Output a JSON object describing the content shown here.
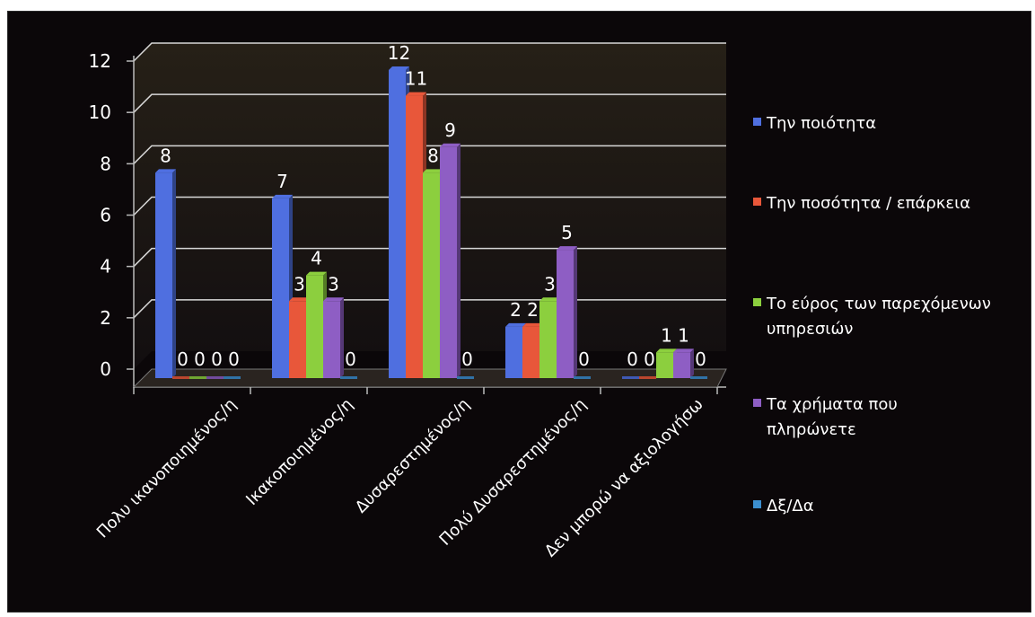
{
  "chart_data": {
    "type": "bar",
    "categories": [
      "Πολυ ικανοποιημένος/η",
      "Ικακοποιημένος/η",
      "Δυσαρεστημένος/η",
      "Πολύ Δυσαρεστημένος/η",
      "Δεν μπορώ να αξιολογήσω"
    ],
    "series": [
      {
        "name": "Την ποιότητα",
        "color": "#4f6fe0",
        "values": [
          8,
          7,
          12,
          2,
          0
        ]
      },
      {
        "name": "Την ποσότητα / επάρκεια",
        "color": "#e8573a",
        "values": [
          0,
          3,
          11,
          2,
          0
        ]
      },
      {
        "name": "Το εύρος των παρεχόμενων υπηρεσιών",
        "color": "#8ccf3e",
        "values": [
          0,
          4,
          8,
          3,
          1
        ]
      },
      {
        "name": "Τα χρήματα που πληρώνετε",
        "color": "#8e5ec4",
        "values": [
          0,
          3,
          9,
          5,
          1
        ]
      },
      {
        "name": "Δξ/Δα",
        "color": "#3c8fcf",
        "values": [
          0,
          0,
          0,
          0,
          0
        ]
      }
    ],
    "yticks": [
      "0",
      "2",
      "4",
      "6",
      "8",
      "10",
      "12"
    ],
    "ylim": [
      0,
      12
    ],
    "grid": true,
    "legend_position": "right",
    "data_labels": [
      [
        "8",
        "0",
        "0",
        "0",
        "0"
      ],
      [
        "7",
        "3",
        "4",
        "3",
        "0"
      ],
      [
        "12",
        "11",
        "8",
        "9",
        "0"
      ],
      [
        "2",
        "2",
        "3",
        "5",
        "0"
      ],
      [
        "0",
        "0",
        "1",
        "1",
        "0"
      ]
    ]
  },
  "legend": [
    {
      "label": "Την ποιότητα",
      "color": "#4f6fe0"
    },
    {
      "label": "Την ποσότητα / επάρκεια",
      "color": "#e8573a"
    },
    {
      "label": "Το εύρος των παρεχόμενων υπηρεσιών",
      "color": "#8ccf3e"
    },
    {
      "label": "Τα χρήματα που πληρώνετε",
      "color": "#8e5ec4"
    },
    {
      "label": "Δξ/Δα",
      "color": "#3c8fcf"
    }
  ]
}
